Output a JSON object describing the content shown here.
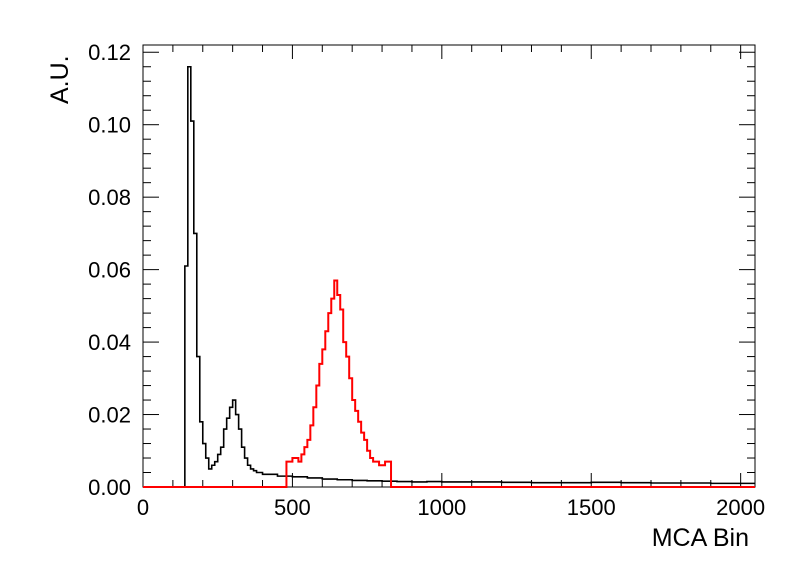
{
  "chart_data": {
    "type": "line",
    "title": "",
    "xlabel": "MCA Bin",
    "ylabel": "A.U.",
    "xlim": [
      0,
      2048
    ],
    "ylim": [
      0,
      0.122
    ],
    "x_ticks": [
      0,
      500,
      1000,
      1500,
      2000
    ],
    "y_ticks": [
      0.0,
      0.02,
      0.04,
      0.06,
      0.08,
      0.1,
      0.12
    ],
    "x_tick_labels": [
      "0",
      "500",
      "1000",
      "1500",
      "2000"
    ],
    "y_tick_labels": [
      "0.00",
      "0.02",
      "0.04",
      "0.06",
      "0.08",
      "0.10",
      "0.12"
    ],
    "grid": false,
    "legend": "none",
    "series": [
      {
        "color": "#000000",
        "style": "step-histogram",
        "x": [
          120,
          130,
          140,
          150,
          160,
          170,
          180,
          190,
          200,
          210,
          220,
          230,
          240,
          250,
          260,
          270,
          280,
          290,
          300,
          310,
          320,
          330,
          340,
          350,
          360,
          370,
          380,
          400,
          450,
          500,
          550,
          600,
          650,
          700,
          750,
          800,
          850,
          900,
          950,
          1000,
          1100,
          1200,
          1300,
          1400,
          1500,
          1600,
          1700,
          1800,
          1900,
          2000,
          2048
        ],
        "values": [
          0.0,
          0.0,
          0.061,
          0.116,
          0.101,
          0.07,
          0.036,
          0.018,
          0.012,
          0.008,
          0.005,
          0.006,
          0.007,
          0.009,
          0.011,
          0.016,
          0.019,
          0.022,
          0.024,
          0.02,
          0.016,
          0.011,
          0.008,
          0.006,
          0.005,
          0.0045,
          0.004,
          0.0035,
          0.003,
          0.0028,
          0.0025,
          0.0022,
          0.002,
          0.0018,
          0.0017,
          0.0016,
          0.0015,
          0.0014,
          0.0015,
          0.0014,
          0.0014,
          0.0013,
          0.0012,
          0.0012,
          0.0013,
          0.0012,
          0.0011,
          0.0011,
          0.001,
          0.001,
          0.001
        ]
      },
      {
        "color": "#ff0000",
        "style": "step-histogram",
        "x": [
          0,
          460,
          470,
          480,
          500,
          520,
          530,
          540,
          550,
          560,
          570,
          580,
          590,
          600,
          610,
          620,
          630,
          640,
          650,
          660,
          670,
          680,
          690,
          700,
          710,
          720,
          730,
          740,
          750,
          760,
          770,
          780,
          790,
          800,
          810,
          820,
          830,
          840,
          2048
        ],
        "values": [
          0.0,
          0.0,
          0.0,
          0.007,
          0.008,
          0.007,
          0.009,
          0.011,
          0.013,
          0.017,
          0.022,
          0.028,
          0.034,
          0.038,
          0.043,
          0.048,
          0.052,
          0.057,
          0.053,
          0.049,
          0.04,
          0.036,
          0.03,
          0.024,
          0.021,
          0.018,
          0.015,
          0.013,
          0.01,
          0.008,
          0.007,
          0.007,
          0.006,
          0.006,
          0.007,
          0.007,
          0.0,
          0.0,
          0.0
        ]
      }
    ]
  }
}
